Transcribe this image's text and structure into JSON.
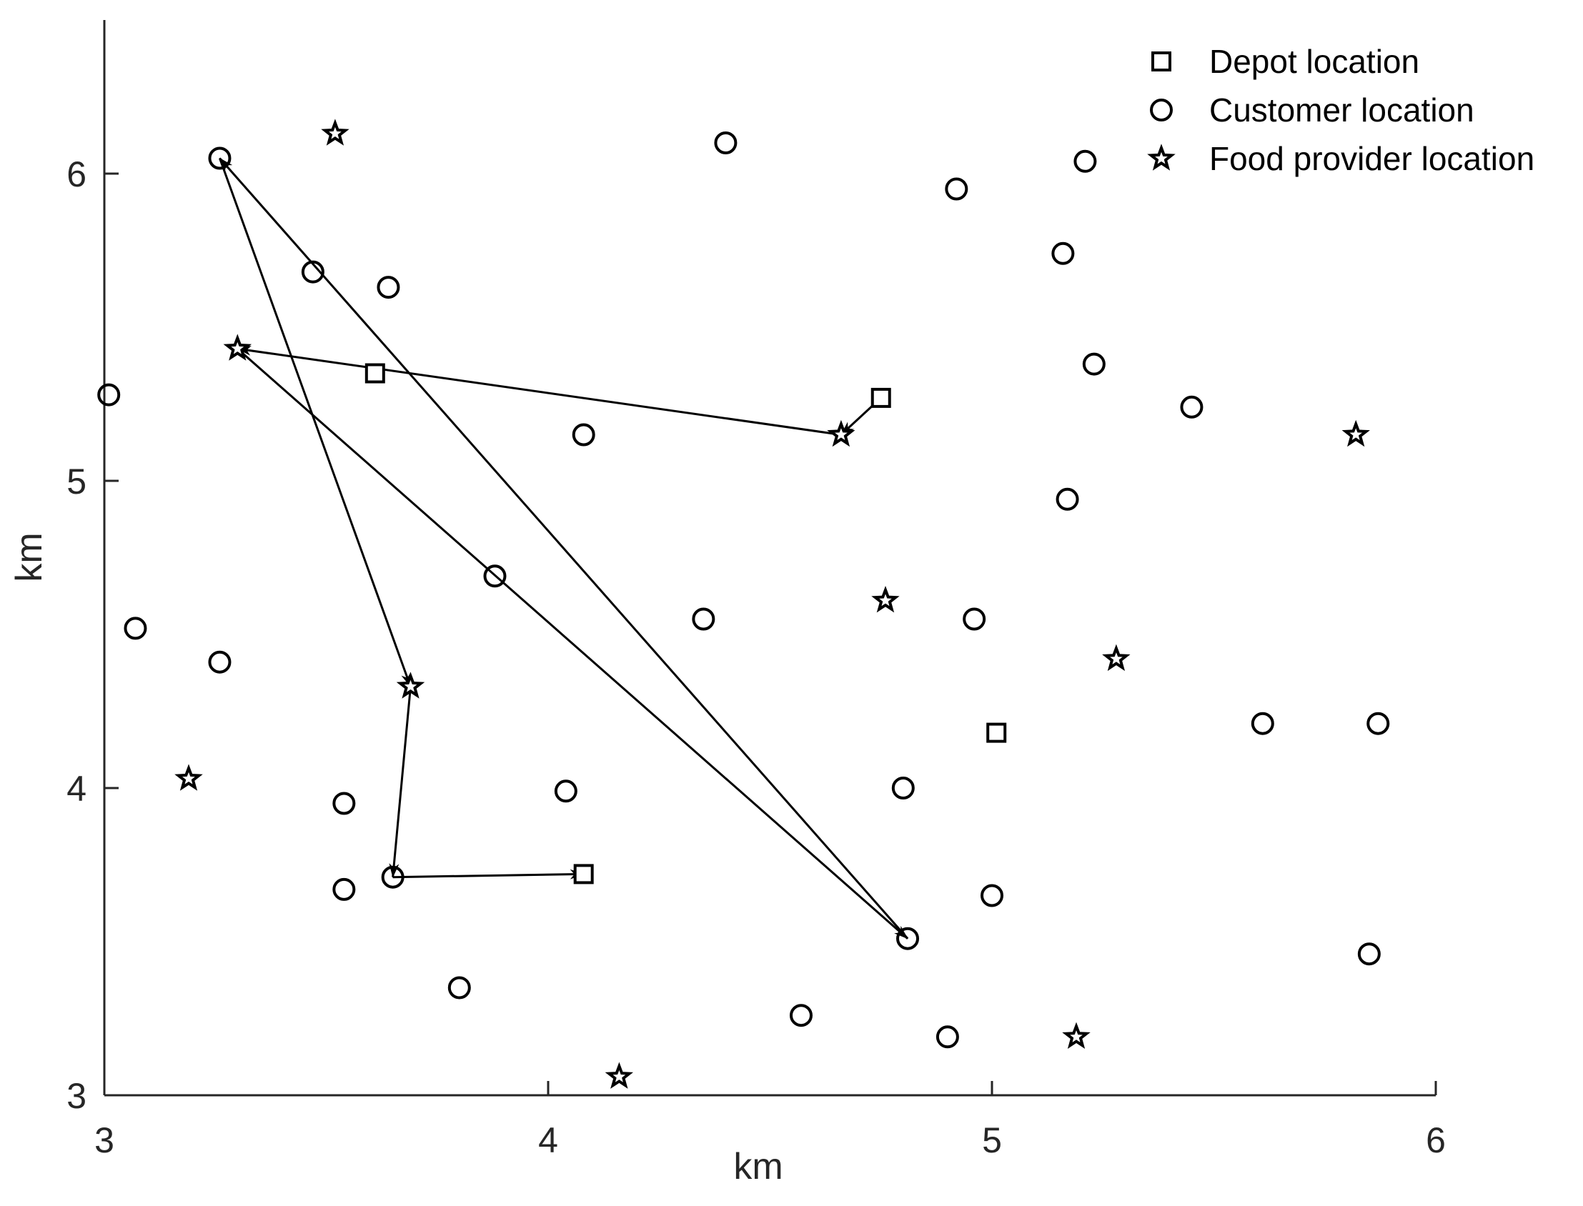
{
  "chart_data": {
    "type": "scatter",
    "title": "",
    "xlabel": "km",
    "ylabel": "km",
    "xlim": [
      3,
      6
    ],
    "ylim": [
      3,
      6.5
    ],
    "xticks": [
      3,
      4,
      5,
      6
    ],
    "yticks": [
      3,
      4,
      5,
      6
    ],
    "grid": false,
    "legend_position": "upper right",
    "series": [
      {
        "name": "Depot location",
        "marker": "square",
        "points": [
          [
            3.61,
            5.35
          ],
          [
            4.75,
            5.27
          ],
          [
            5.01,
            4.18
          ],
          [
            4.08,
            3.72
          ]
        ]
      },
      {
        "name": "Customer location",
        "marker": "circle",
        "points": [
          [
            3.26,
            6.05
          ],
          [
            3.47,
            5.68
          ],
          [
            3.64,
            5.63
          ],
          [
            3.01,
            5.28
          ],
          [
            4.08,
            5.15
          ],
          [
            4.4,
            6.1
          ],
          [
            4.92,
            5.95
          ],
          [
            5.21,
            6.04
          ],
          [
            5.16,
            5.74
          ],
          [
            5.23,
            5.38
          ],
          [
            5.45,
            5.24
          ],
          [
            5.17,
            4.94
          ],
          [
            3.88,
            4.69
          ],
          [
            3.07,
            4.52
          ],
          [
            4.35,
            4.55
          ],
          [
            4.96,
            4.55
          ],
          [
            3.26,
            4.41
          ],
          [
            5.61,
            4.21
          ],
          [
            5.87,
            4.21
          ],
          [
            4.8,
            4.0
          ],
          [
            4.04,
            3.99
          ],
          [
            3.54,
            3.95
          ],
          [
            3.54,
            3.67
          ],
          [
            3.65,
            3.71
          ],
          [
            5.0,
            3.65
          ],
          [
            4.81,
            3.51
          ],
          [
            5.85,
            3.46
          ],
          [
            3.8,
            3.35
          ],
          [
            4.57,
            3.26
          ],
          [
            4.9,
            3.19
          ]
        ]
      },
      {
        "name": "Food provider location",
        "marker": "star",
        "points": [
          [
            3.52,
            6.13
          ],
          [
            3.3,
            5.43
          ],
          [
            4.66,
            5.15
          ],
          [
            5.82,
            5.15
          ],
          [
            4.76,
            4.61
          ],
          [
            5.28,
            4.42
          ],
          [
            3.69,
            4.33
          ],
          [
            3.19,
            4.03
          ],
          [
            5.19,
            3.19
          ],
          [
            4.16,
            3.06
          ]
        ]
      }
    ],
    "route": {
      "name": "Delivery route",
      "arrows": [
        {
          "from": [
            4.75,
            5.27
          ],
          "to": [
            4.66,
            5.15
          ]
        },
        {
          "from": [
            4.66,
            5.15
          ],
          "to": [
            3.3,
            5.43
          ]
        },
        {
          "from": [
            3.3,
            5.43
          ],
          "to": [
            4.81,
            3.51
          ]
        },
        {
          "from": [
            4.81,
            3.51
          ],
          "to": [
            3.26,
            6.05
          ]
        },
        {
          "from": [
            3.26,
            6.05
          ],
          "to": [
            3.69,
            4.33
          ]
        },
        {
          "from": [
            3.69,
            4.33
          ],
          "to": [
            3.65,
            3.71
          ]
        },
        {
          "from": [
            3.65,
            3.71
          ],
          "to": [
            4.08,
            3.72
          ]
        }
      ]
    }
  },
  "legend": {
    "items": [
      {
        "label": "Depot location",
        "marker": "square"
      },
      {
        "label": "Customer location",
        "marker": "circle"
      },
      {
        "label": "Food provider location",
        "marker": "star"
      }
    ]
  },
  "colors": {
    "axis": "#262626",
    "marker": "#000000",
    "background": "#ffffff"
  }
}
